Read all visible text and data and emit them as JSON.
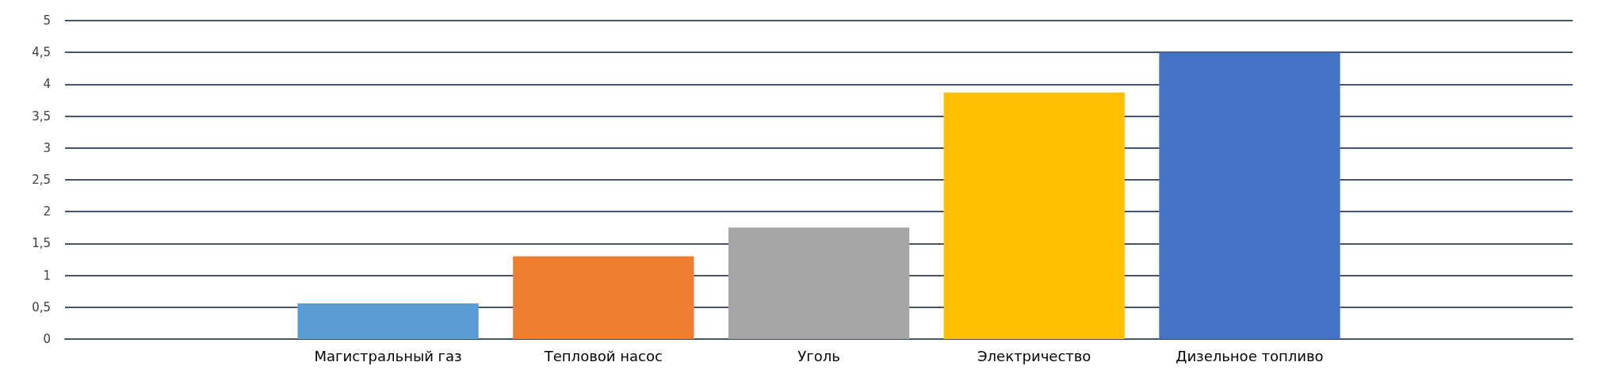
{
  "chart_data": {
    "type": "bar",
    "categories": [
      null,
      "Магистральный газ",
      "Тепловой насос",
      "Уголь",
      "Электричество",
      "Дизельное топливо",
      null
    ],
    "values": [
      null,
      0.56,
      1.3,
      1.75,
      3.87,
      4.5,
      null
    ],
    "colors": [
      "#5b9bd5",
      "#5b9bd5",
      "#ed7d31",
      "#a5a5a5",
      "#ffc000",
      "#4472c4",
      "#4472c4"
    ],
    "ylim": [
      0,
      5
    ],
    "yticks": [
      0,
      {
        "value": 0.5,
        "label": "0,5"
      },
      1,
      {
        "value": 1.5,
        "label": "1,5"
      },
      2,
      {
        "value": 2.5,
        "label": "2,5"
      },
      3,
      {
        "value": 3.5,
        "label": "3,5"
      },
      4,
      {
        "value": 4.5,
        "label": "4,5"
      },
      5
    ],
    "grid": "y"
  }
}
